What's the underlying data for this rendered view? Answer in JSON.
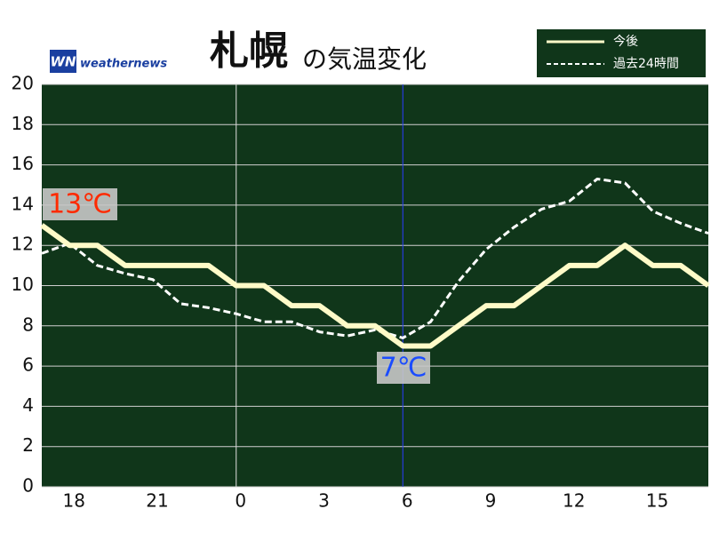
{
  "chart_data": {
    "type": "line",
    "title_main": "札幌",
    "title_sub": "の気温変化",
    "logo_mark": "WN",
    "logo_text": "weathernews",
    "x": [
      17,
      18,
      19,
      20,
      21,
      22,
      23,
      24,
      25,
      26,
      27,
      28,
      29,
      30,
      31,
      32,
      33,
      34,
      35,
      36,
      37,
      38,
      39,
      40,
      41
    ],
    "series": [
      {
        "name": "今後",
        "color": "#fffbc8",
        "dashed": false,
        "values": [
          13,
          12,
          12,
          11,
          11,
          11,
          11,
          10,
          10,
          9,
          9,
          8,
          8,
          7,
          7,
          8,
          9,
          9,
          10,
          11,
          11,
          12,
          11,
          11,
          10
        ]
      },
      {
        "name": "過去24時間",
        "color": "#ffffff",
        "dashed": true,
        "values": [
          11.6,
          12.1,
          11,
          10.6,
          10.3,
          9.1,
          8.9,
          8.6,
          8.2,
          8.2,
          7.7,
          7.5,
          7.8,
          7.4,
          8.2,
          10.2,
          11.8,
          12.9,
          13.8,
          14.2,
          15.3,
          15.1,
          13.7,
          13.1,
          12.6
        ]
      }
    ],
    "xlim": [
      17,
      41
    ],
    "xticks": [
      18,
      21,
      {
        "value": 24,
        "label": "0"
      },
      {
        "value": 27,
        "label": "3"
      },
      {
        "value": 30,
        "label": "6"
      },
      {
        "value": 33,
        "label": "9"
      },
      {
        "value": 36,
        "label": "12"
      },
      {
        "value": 39,
        "label": "15"
      }
    ],
    "ylim": [
      0,
      20
    ],
    "yticks": [
      0,
      2,
      4,
      6,
      8,
      10,
      12,
      14,
      16,
      18,
      20
    ],
    "grid": true,
    "annotations": [
      {
        "text": "13℃",
        "color": "#ff2a00"
      },
      {
        "text": "7℃",
        "color": "#1a4cff"
      }
    ]
  }
}
